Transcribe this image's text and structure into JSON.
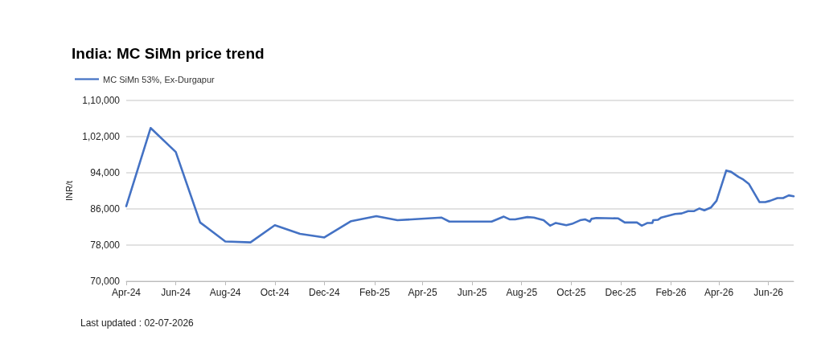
{
  "chart_data": {
    "type": "line",
    "title": "India: MC SiMn price trend",
    "ylabel": "INR/t",
    "annotations": [
      "Last updated : 02-07-2026"
    ],
    "x": [
      "2024-04-01",
      "2024-05-01",
      "2024-06-01",
      "2024-07-01",
      "2024-08-01",
      "2024-09-01",
      "2024-10-01",
      "2024-11-01",
      "2024-12-01",
      "2025-01-03",
      "2025-02-03",
      "2025-03-01",
      "2025-04-24",
      "2025-05-04",
      "2025-06-25",
      "2025-07-10",
      "2025-07-17",
      "2025-07-24",
      "2025-08-08",
      "2025-08-16",
      "2025-08-28",
      "2025-09-05",
      "2025-09-12",
      "2025-09-25",
      "2025-10-02",
      "2025-10-12",
      "2025-10-18",
      "2025-10-24",
      "2025-10-26",
      "2025-11-01",
      "2025-11-28",
      "2025-12-06",
      "2025-12-21",
      "2025-12-27",
      "2026-01-03",
      "2026-01-09",
      "2026-01-10",
      "2026-01-16",
      "2026-01-20",
      "2026-02-06",
      "2026-02-14",
      "2026-02-22",
      "2026-03-01",
      "2026-03-08",
      "2026-03-14",
      "2026-03-22",
      "2026-03-29",
      "2026-04-10",
      "2026-04-16",
      "2026-04-25",
      "2026-05-01",
      "2026-05-08",
      "2026-05-21",
      "2026-05-28",
      "2026-06-03",
      "2026-06-12",
      "2026-06-19",
      "2026-06-26",
      "2026-07-02"
    ],
    "series": [
      {
        "name": "MC SiMn 53%, Ex-Durgapur",
        "color": "#4472c4",
        "values": [
          86600,
          103900,
          98600,
          83000,
          78800,
          78600,
          82400,
          80500,
          79700,
          83300,
          84400,
          83500,
          84100,
          83200,
          83200,
          84300,
          83700,
          83700,
          84200,
          84100,
          83500,
          82300,
          82900,
          82400,
          82700,
          83500,
          83700,
          83200,
          83800,
          84000,
          83900,
          83000,
          83000,
          82300,
          82900,
          82900,
          83500,
          83600,
          84100,
          84900,
          85000,
          85500,
          85500,
          86100,
          85700,
          86300,
          87800,
          94500,
          94200,
          93100,
          92500,
          91500,
          87500,
          87500,
          87800,
          88400,
          88400,
          89000,
          88800
        ]
      }
    ],
    "xlim": [
      "2024-04-01",
      "2026-07-02"
    ],
    "xticks": [
      {
        "value": "2024-04-01",
        "label": "Apr-24"
      },
      {
        "value": "2024-06-01",
        "label": "Jun-24"
      },
      {
        "value": "2024-08-01",
        "label": "Aug-24"
      },
      {
        "value": "2024-10-01",
        "label": "Oct-24"
      },
      {
        "value": "2024-12-01",
        "label": "Dec-24"
      },
      {
        "value": "2025-02-01",
        "label": "Feb-25"
      },
      {
        "value": "2025-04-01",
        "label": "Apr-25"
      },
      {
        "value": "2025-06-01",
        "label": "Jun-25"
      },
      {
        "value": "2025-08-01",
        "label": "Aug-25"
      },
      {
        "value": "2025-10-01",
        "label": "Oct-25"
      },
      {
        "value": "2025-12-01",
        "label": "Dec-25"
      },
      {
        "value": "2026-02-01",
        "label": "Feb-26"
      },
      {
        "value": "2026-04-01",
        "label": "Apr-26"
      },
      {
        "value": "2026-06-01",
        "label": "Jun-26"
      }
    ],
    "ylim": [
      70000,
      110000
    ],
    "yticks": [
      {
        "value": 70000,
        "label": "70,000"
      },
      {
        "value": 78000,
        "label": "78,000"
      },
      {
        "value": 86000,
        "label": "86,000"
      },
      {
        "value": 94000,
        "label": "94,000"
      },
      {
        "value": 102000,
        "label": "1,02,000"
      },
      {
        "value": 110000,
        "label": "1,10,000"
      }
    ],
    "grid": "y",
    "legend": "top left",
    "marker": "none",
    "line_style": "solid"
  }
}
